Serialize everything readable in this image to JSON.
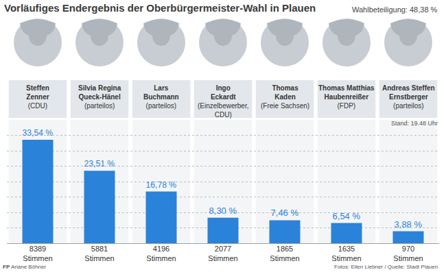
{
  "chart_data": {
    "type": "bar",
    "title": "Vorläufiges Endergebnis der Oberbürgermeister-Wahl in Plauen",
    "subtitle": "Wahlbeteiligung: 48,38 %",
    "timestamp": "Stand: 19.48 Uhr",
    "categories": [
      "Steffen\nZenner",
      "Silvia Regina\nQueck-Hänel",
      "Lars\nBuchmann",
      "Ingo\nEckardt",
      "Thomas\nKaden",
      "Thomas Matthias\nHaubenreißer",
      "Andreas Steffen\nErnstberger"
    ],
    "parties": [
      "(CDU)",
      "(parteilos)",
      "(parteilos)",
      "(Einzelbewerber,\nCDU)",
      "(Freie Sachsen)",
      "(FDP)",
      "(parteilos)"
    ],
    "values": [
      33.54,
      23.51,
      16.78,
      8.3,
      7.46,
      6.54,
      3.88
    ],
    "value_labels": [
      "33,54 %",
      "23,51 %",
      "16,78 %",
      "8,30 %",
      "7,46 %",
      "6,54 %",
      "3,88 %"
    ],
    "vote_labels": [
      "8389\nStimmen",
      "5881\nStimmen",
      "4196\nStimmen",
      "2077\nStimmen",
      "1865\nStimmen",
      "1635\nStimmen",
      "970\nStimmen"
    ],
    "color": "#2b82d9",
    "ylim": [
      0,
      40
    ],
    "yticks": [
      0,
      5,
      10,
      15,
      20,
      25,
      30,
      35,
      40
    ],
    "grid": true,
    "data_labels": true,
    "tick_labels": "x",
    "credit_logo": "FP",
    "credit": "Ariane Böhner",
    "source": "Fotos: Ellen Liebner / Quelle: Stadt Plauen"
  }
}
